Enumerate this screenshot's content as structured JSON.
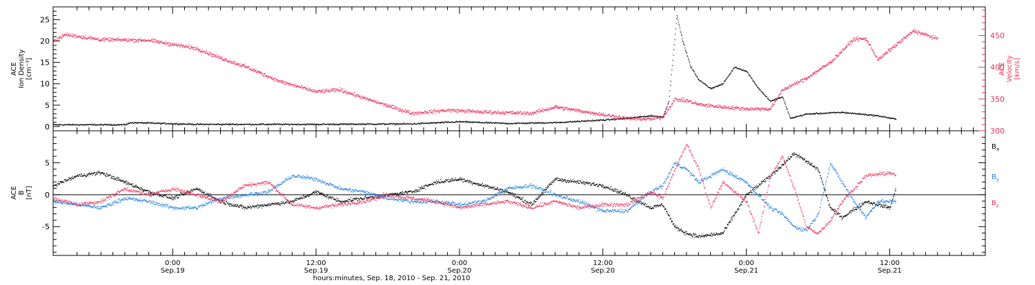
{
  "colors": {
    "black": "#000000",
    "pink": "#e8335e",
    "blue": "#1f7fe0"
  },
  "xaxis": {
    "title": "hours:minutes, Sep. 18, 2010 - Sep. 21, 2010",
    "ticks": [
      {
        "time": "0:00",
        "date": "Sep.19",
        "hour": 24
      },
      {
        "time": "12:00",
        "date": "Sep.19",
        "hour": 36
      },
      {
        "time": "0:00",
        "date": "Sep.20",
        "hour": 48
      },
      {
        "time": "12:00",
        "date": "Sep.20",
        "hour": 60
      },
      {
        "time": "0:00",
        "date": "Sep.21",
        "hour": 72
      },
      {
        "time": "12:00",
        "date": "Sep.21",
        "hour": 84
      }
    ]
  },
  "panel1": {
    "left_label": [
      "ACE",
      "Ion Density",
      "[cm⁻³]"
    ],
    "right_label": [
      "ACE",
      "Velocity",
      "[km/s]"
    ]
  },
  "panel2": {
    "left_label": [
      "ACE",
      "B",
      "[nT]"
    ],
    "legend": [
      {
        "text": "Bx",
        "sub": "x",
        "base": "B",
        "color": "black"
      },
      {
        "text": "By",
        "sub": "y",
        "base": "B",
        "color": "blue"
      },
      {
        "text": "Bz",
        "sub": "z",
        "base": "B",
        "color": "pink"
      }
    ]
  },
  "chart_data": [
    {
      "type": "scatter",
      "title": "",
      "xlabel": "hours:minutes, Sep. 18, 2010 - Sep. 21, 2010",
      "xlim": [
        "2010-09-18 14:00",
        "2010-09-21 20:00"
      ],
      "ylim_left": [
        -1,
        28
      ],
      "yticks_left": [
        0,
        5,
        10,
        15,
        20,
        25
      ],
      "ylim_right": [
        300,
        495
      ],
      "yticks_right": [
        300,
        350,
        400,
        450
      ],
      "series": [
        {
          "name": "Ion Density",
          "axis": "left",
          "unit": "cm^-3",
          "color": "black",
          "points": [
            [
              "2010-09-18 14:00",
              0.5
            ],
            [
              "2010-09-18 20:00",
              0.5
            ],
            [
              "2010-09-18 20:30",
              1.0
            ],
            [
              "2010-09-19 02:00",
              0.6
            ],
            [
              "2010-09-19 12:00",
              0.6
            ],
            [
              "2010-09-19 20:00",
              0.7
            ],
            [
              "2010-09-20 00:00",
              1.2
            ],
            [
              "2010-09-20 04:00",
              0.8
            ],
            [
              "2010-09-20 08:00",
              1.0
            ],
            [
              "2010-09-20 10:00",
              1.3
            ],
            [
              "2010-09-20 12:00",
              1.6
            ],
            [
              "2010-09-20 14:00",
              2.0
            ],
            [
              "2010-09-20 16:00",
              2.6
            ],
            [
              "2010-09-20 17:00",
              2.3
            ],
            [
              "2010-09-20 17:30",
              6.0
            ],
            [
              "2010-09-20 18:10",
              26.0
            ],
            [
              "2010-09-20 18:40",
              20.0
            ],
            [
              "2010-09-20 19:20",
              14.0
            ],
            [
              "2010-09-20 20:00",
              11.0
            ],
            [
              "2010-09-20 21:00",
              9.0
            ],
            [
              "2010-09-20 22:00",
              10.0
            ],
            [
              "2010-09-20 23:00",
              14.0
            ],
            [
              "2010-09-21 00:00",
              13.0
            ],
            [
              "2010-09-21 01:00",
              9.0
            ],
            [
              "2010-09-21 02:00",
              6.0
            ],
            [
              "2010-09-21 03:00",
              7.0
            ],
            [
              "2010-09-21 03:40",
              2.0
            ],
            [
              "2010-09-21 05:00",
              3.0
            ],
            [
              "2010-09-21 08:00",
              3.4
            ],
            [
              "2010-09-21 11:00",
              2.6
            ],
            [
              "2010-09-21 12:30",
              1.8
            ]
          ]
        },
        {
          "name": "Velocity",
          "axis": "right",
          "unit": "km/s",
          "color": "pink",
          "points": [
            [
              "2010-09-18 14:00",
              442
            ],
            [
              "2010-09-18 15:00",
              452
            ],
            [
              "2010-09-18 18:00",
              444
            ],
            [
              "2010-09-18 22:00",
              443
            ],
            [
              "2010-09-19 02:00",
              430
            ],
            [
              "2010-09-19 04:00",
              415
            ],
            [
              "2010-09-19 06:00",
              402
            ],
            [
              "2010-09-19 09:00",
              378
            ],
            [
              "2010-09-19 12:00",
              362
            ],
            [
              "2010-09-19 14:00",
              365
            ],
            [
              "2010-09-19 16:00",
              352
            ],
            [
              "2010-09-19 18:00",
              340
            ],
            [
              "2010-09-19 20:00",
              328
            ],
            [
              "2010-09-19 23:00",
              333
            ],
            [
              "2010-09-20 02:00",
              330
            ],
            [
              "2010-09-20 06:00",
              328
            ],
            [
              "2010-09-20 08:00",
              338
            ],
            [
              "2010-09-20 12:00",
              326
            ],
            [
              "2010-09-20 14:00",
              320
            ],
            [
              "2010-09-20 16:00",
              319
            ],
            [
              "2010-09-20 17:00",
              322
            ],
            [
              "2010-09-20 18:00",
              350
            ],
            [
              "2010-09-20 19:00",
              348
            ],
            [
              "2010-09-20 20:00",
              342
            ],
            [
              "2010-09-20 22:00",
              338
            ],
            [
              "2010-09-21 00:00",
              335
            ],
            [
              "2010-09-21 02:00",
              335
            ],
            [
              "2010-09-21 03:00",
              365
            ],
            [
              "2010-09-21 05:00",
              383
            ],
            [
              "2010-09-21 07:00",
              408
            ],
            [
              "2010-09-21 09:00",
              445
            ],
            [
              "2010-09-21 10:00",
              445
            ],
            [
              "2010-09-21 11:00",
              412
            ],
            [
              "2010-09-21 12:00",
              428
            ],
            [
              "2010-09-21 14:00",
              458
            ],
            [
              "2010-09-21 16:00",
              445
            ]
          ]
        }
      ]
    },
    {
      "type": "scatter",
      "title": "",
      "xlim": [
        "2010-09-18 14:00",
        "2010-09-21 20:00"
      ],
      "ylim": [
        -9.5,
        10
      ],
      "yticks": [
        -5,
        0,
        5
      ],
      "series": [
        {
          "name": "Bx",
          "color": "black",
          "points": [
            [
              "2010-09-18 14:00",
              1.5
            ],
            [
              "2010-09-18 16:00",
              3.0
            ],
            [
              "2010-09-18 18:00",
              3.5
            ],
            [
              "2010-09-18 20:00",
              2.0
            ],
            [
              "2010-09-18 22:00",
              0.5
            ],
            [
              "2010-09-19 00:00",
              -0.5
            ],
            [
              "2010-09-19 02:00",
              1.0
            ],
            [
              "2010-09-19 04:00",
              -1.0
            ],
            [
              "2010-09-19 06:00",
              -2.0
            ],
            [
              "2010-09-19 08:00",
              -1.5
            ],
            [
              "2010-09-19 10:00",
              -1.0
            ],
            [
              "2010-09-19 12:00",
              0.5
            ],
            [
              "2010-09-19 14:00",
              -1.0
            ],
            [
              "2010-09-19 16:00",
              -0.5
            ],
            [
              "2010-09-19 18:00",
              0.0
            ],
            [
              "2010-09-19 20:00",
              0.5
            ],
            [
              "2010-09-19 22:00",
              2.0
            ],
            [
              "2010-09-20 00:00",
              2.5
            ],
            [
              "2010-09-20 02:00",
              1.5
            ],
            [
              "2010-09-20 04:00",
              0.5
            ],
            [
              "2010-09-20 06:00",
              -1.5
            ],
            [
              "2010-09-20 08:00",
              2.5
            ],
            [
              "2010-09-20 10:00",
              2.0
            ],
            [
              "2010-09-20 12:00",
              1.5
            ],
            [
              "2010-09-20 14:00",
              0.0
            ],
            [
              "2010-09-20 16:00",
              -2.0
            ],
            [
              "2010-09-20 17:00",
              -1.5
            ],
            [
              "2010-09-20 18:00",
              -5.0
            ],
            [
              "2010-09-20 19:00",
              -6.0
            ],
            [
              "2010-09-20 20:00",
              -6.5
            ],
            [
              "2010-09-20 22:00",
              -6.0
            ],
            [
              "2010-09-21 00:00",
              0.0
            ],
            [
              "2010-09-21 02:00",
              3.0
            ],
            [
              "2010-09-21 04:00",
              6.5
            ],
            [
              "2010-09-21 06:00",
              4.0
            ],
            [
              "2010-09-21 07:00",
              -2.0
            ],
            [
              "2010-09-21 08:00",
              -3.5
            ],
            [
              "2010-09-21 10:00",
              -1.0
            ],
            [
              "2010-09-21 12:00",
              -2.0
            ],
            [
              "2010-09-21 12:30",
              1.0
            ]
          ]
        },
        {
          "name": "By",
          "color": "blue",
          "points": [
            [
              "2010-09-18 14:00",
              -1.0
            ],
            [
              "2010-09-18 16:00",
              -1.5
            ],
            [
              "2010-09-18 18:00",
              -2.0
            ],
            [
              "2010-09-18 20:00",
              -0.5
            ],
            [
              "2010-09-18 22:00",
              -1.0
            ],
            [
              "2010-09-19 00:00",
              -2.0
            ],
            [
              "2010-09-19 02:00",
              -2.0
            ],
            [
              "2010-09-19 04:00",
              -0.5
            ],
            [
              "2010-09-19 06:00",
              0.0
            ],
            [
              "2010-09-19 08:00",
              0.5
            ],
            [
              "2010-09-19 10:00",
              3.0
            ],
            [
              "2010-09-19 12:00",
              2.5
            ],
            [
              "2010-09-19 14:00",
              1.0
            ],
            [
              "2010-09-19 16:00",
              0.5
            ],
            [
              "2010-09-19 18:00",
              -0.5
            ],
            [
              "2010-09-19 20:00",
              -1.0
            ],
            [
              "2010-09-19 22:00",
              -1.0
            ],
            [
              "2010-09-20 00:00",
              -1.5
            ],
            [
              "2010-09-20 02:00",
              -1.0
            ],
            [
              "2010-09-20 04:00",
              1.0
            ],
            [
              "2010-09-20 06:00",
              1.5
            ],
            [
              "2010-09-20 08:00",
              0.0
            ],
            [
              "2010-09-20 10:00",
              -1.0
            ],
            [
              "2010-09-20 12:00",
              -2.5
            ],
            [
              "2010-09-20 14:00",
              -2.5
            ],
            [
              "2010-09-20 16:00",
              0.5
            ],
            [
              "2010-09-20 17:00",
              1.5
            ],
            [
              "2010-09-20 18:00",
              5.0
            ],
            [
              "2010-09-20 19:00",
              4.0
            ],
            [
              "2010-09-20 20:00",
              2.0
            ],
            [
              "2010-09-20 22:00",
              4.0
            ],
            [
              "2010-09-21 00:00",
              2.0
            ],
            [
              "2010-09-21 02:00",
              -2.0
            ],
            [
              "2010-09-21 03:00",
              -3.0
            ],
            [
              "2010-09-21 04:00",
              -5.0
            ],
            [
              "2010-09-21 05:00",
              -5.5
            ],
            [
              "2010-09-21 06:00",
              -3.0
            ],
            [
              "2010-09-21 07:00",
              5.0
            ],
            [
              "2010-09-21 09:00",
              -1.0
            ],
            [
              "2010-09-21 10:00",
              -3.5
            ],
            [
              "2010-09-21 11:00",
              -1.0
            ],
            [
              "2010-09-21 12:30",
              -1.0
            ]
          ]
        },
        {
          "name": "Bz",
          "color": "pink",
          "points": [
            [
              "2010-09-18 14:00",
              -0.5
            ],
            [
              "2010-09-18 16:00",
              -1.5
            ],
            [
              "2010-09-18 18:00",
              -1.0
            ],
            [
              "2010-09-18 20:00",
              1.0
            ],
            [
              "2010-09-18 22:00",
              0.0
            ],
            [
              "2010-09-19 00:00",
              1.0
            ],
            [
              "2010-09-19 02:00",
              0.0
            ],
            [
              "2010-09-19 04:00",
              -1.0
            ],
            [
              "2010-09-19 06:00",
              1.5
            ],
            [
              "2010-09-19 08:00",
              2.0
            ],
            [
              "2010-09-19 10:00",
              -1.5
            ],
            [
              "2010-09-19 12:00",
              -2.0
            ],
            [
              "2010-09-19 14:00",
              -1.5
            ],
            [
              "2010-09-19 16:00",
              -1.0
            ],
            [
              "2010-09-19 18:00",
              0.0
            ],
            [
              "2010-09-19 20:00",
              -0.5
            ],
            [
              "2010-09-19 22:00",
              -1.0
            ],
            [
              "2010-09-20 00:00",
              -2.0
            ],
            [
              "2010-09-20 02:00",
              -1.5
            ],
            [
              "2010-09-20 04:00",
              -1.0
            ],
            [
              "2010-09-20 06:00",
              -2.0
            ],
            [
              "2010-09-20 08:00",
              -1.0
            ],
            [
              "2010-09-20 10:00",
              -2.0
            ],
            [
              "2010-09-20 12:00",
              -1.5
            ],
            [
              "2010-09-20 14:00",
              -1.5
            ],
            [
              "2010-09-20 16:00",
              0.5
            ],
            [
              "2010-09-20 17:00",
              -0.5
            ],
            [
              "2010-09-20 18:00",
              4.0
            ],
            [
              "2010-09-20 19:00",
              8.0
            ],
            [
              "2010-09-20 20:00",
              4.0
            ],
            [
              "2010-09-20 21:00",
              -2.0
            ],
            [
              "2010-09-20 22:00",
              2.0
            ],
            [
              "2010-09-21 00:00",
              -1.0
            ],
            [
              "2010-09-21 01:00",
              -6.0
            ],
            [
              "2010-09-21 02:00",
              3.0
            ],
            [
              "2010-09-21 03:00",
              6.0
            ],
            [
              "2010-09-21 04:00",
              1.0
            ],
            [
              "2010-09-21 05:00",
              -5.0
            ],
            [
              "2010-09-21 06:00",
              -6.0
            ],
            [
              "2010-09-21 07:00",
              -4.0
            ],
            [
              "2010-09-21 08:00",
              -1.0
            ],
            [
              "2010-09-21 10:00",
              3.0
            ],
            [
              "2010-09-21 12:00",
              3.5
            ],
            [
              "2010-09-21 12:30",
              3.0
            ]
          ]
        }
      ]
    }
  ]
}
